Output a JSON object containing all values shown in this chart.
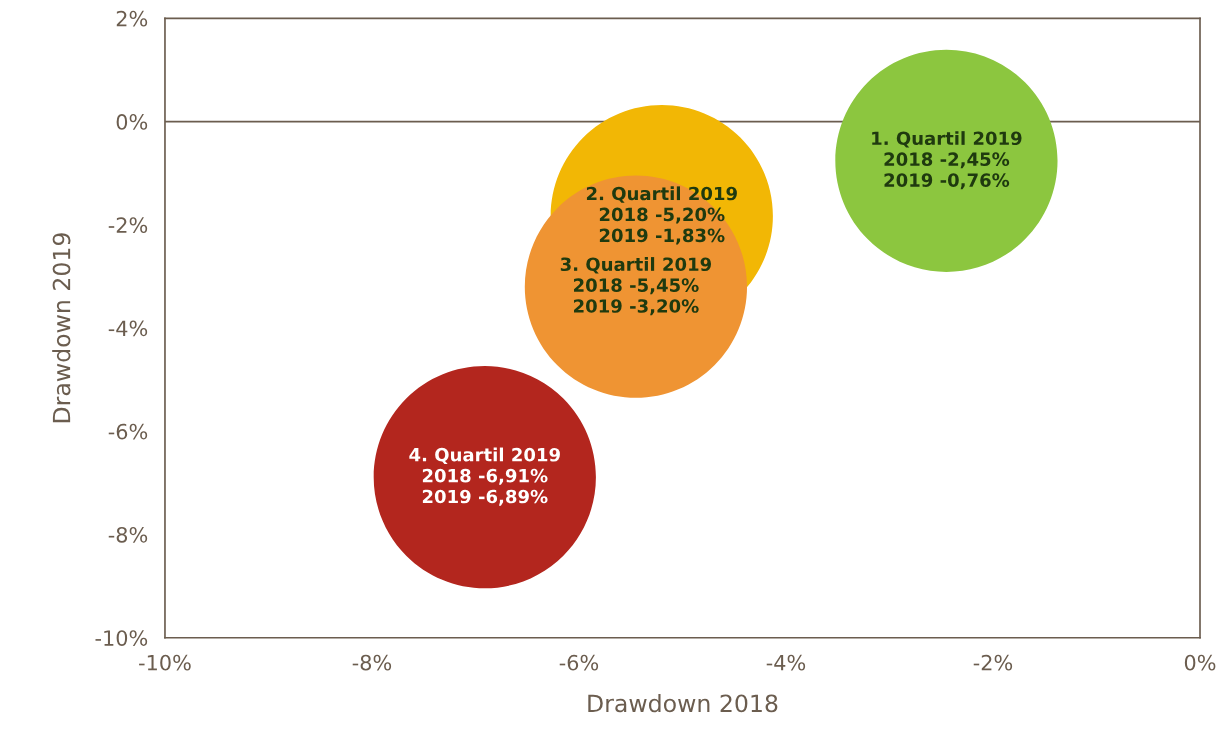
{
  "chart_data": {
    "type": "bubble",
    "xlabel": "Drawdown 2018",
    "ylabel": "Drawdown 2019",
    "x": [
      -2.45,
      -5.2,
      -5.45,
      -6.91
    ],
    "values": [
      -0.76,
      -1.83,
      -3.2,
      -6.89
    ],
    "sizes": [
      1,
      1,
      1,
      1
    ],
    "colors": [
      "#8cc63f",
      "#f2b705",
      "#ef9433",
      "#b3261e"
    ],
    "value_labels": [
      "1. Quartil 2019\n2018 -2,45%\n2019 -0,76%",
      "2. Quartil 2019\n2018 -5,20%\n2019 -1,83%",
      "3. Quartil 2019\n2018 -5,45%\n2019 -3,20%",
      "4. Quartil 2019\n2018 -6,91%\n2019 -6,89%"
    ],
    "xlim": [
      -10,
      0
    ],
    "xticks": [
      {
        "value": -10,
        "label": "-10%"
      },
      {
        "value": -8,
        "label": "-8%"
      },
      {
        "value": -6,
        "label": "-6%"
      },
      {
        "value": -4,
        "label": "-4%"
      },
      {
        "value": -2,
        "label": "-2%"
      },
      {
        "value": 0,
        "label": "0%"
      }
    ],
    "ylim": [
      -10,
      2
    ],
    "yticks": [
      {
        "value": -10,
        "label": "-10%"
      },
      {
        "value": -8,
        "label": "-8%"
      },
      {
        "value": -6,
        "label": "-6%"
      },
      {
        "value": -4,
        "label": "-4%"
      },
      {
        "value": -2,
        "label": "-2%"
      },
      {
        "value": 0,
        "label": "0%"
      },
      {
        "value": 2,
        "label": "2%"
      }
    ],
    "ref_lines": [
      {
        "axis": "y",
        "value": 0,
        "color": "#6b5d4f"
      }
    ],
    "grid": false,
    "legend": false
  }
}
